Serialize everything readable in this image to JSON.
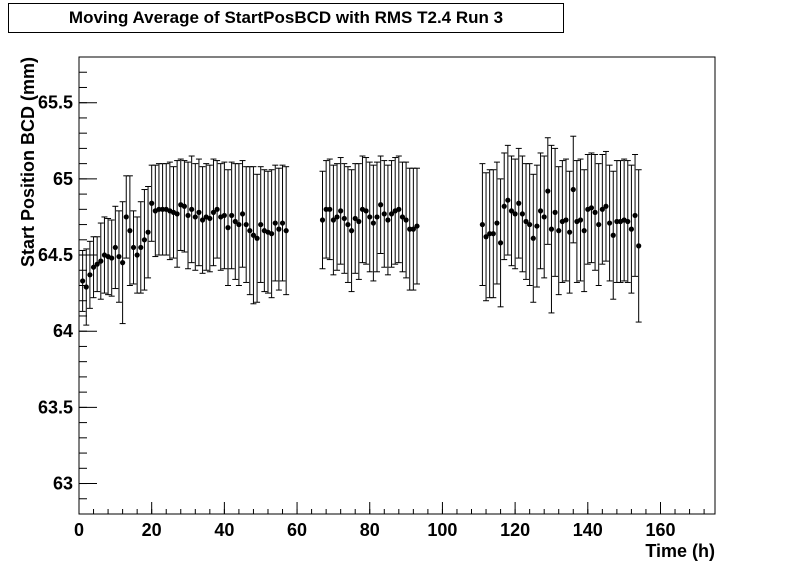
{
  "chart_data": {
    "type": "scatter",
    "title": "Moving Average of StartPosBCD with RMS T2.4 Run 3",
    "xlabel": "Time (h)",
    "ylabel": "Start Position BCD (mm)",
    "xlim": [
      0,
      175
    ],
    "ylim": [
      62.8,
      65.8
    ],
    "x_ticks": [
      0,
      20,
      40,
      60,
      80,
      100,
      120,
      140,
      160
    ],
    "y_ticks": [
      63,
      63.5,
      64,
      64.5,
      65,
      65.5
    ],
    "x_tick_labels": [
      "0",
      "20",
      "40",
      "60",
      "80",
      "100",
      "120",
      "140",
      "160"
    ],
    "y_tick_labels": [
      "63",
      "63.5",
      "64",
      "64.5",
      "65",
      "65.5"
    ],
    "grid": false,
    "legend": "none",
    "series": [
      {
        "name": "",
        "marker": "circle",
        "color": "#000000",
        "points": [
          {
            "x": 1,
            "y": 64.33,
            "err": 0.2
          },
          {
            "x": 2,
            "y": 64.29,
            "err": 0.25
          },
          {
            "x": 3,
            "y": 64.37,
            "err": 0.22
          },
          {
            "x": 4,
            "y": 64.42,
            "err": 0.2
          },
          {
            "x": 5,
            "y": 64.44,
            "err": 0.18
          },
          {
            "x": 6,
            "y": 64.46,
            "err": 0.25
          },
          {
            "x": 7,
            "y": 64.5,
            "err": 0.25
          },
          {
            "x": 8,
            "y": 64.49,
            "err": 0.25
          },
          {
            "x": 9,
            "y": 64.48,
            "err": 0.25
          },
          {
            "x": 10,
            "y": 64.55,
            "err": 0.27
          },
          {
            "x": 11,
            "y": 64.49,
            "err": 0.3
          },
          {
            "x": 12,
            "y": 64.45,
            "err": 0.4
          },
          {
            "x": 13,
            "y": 64.75,
            "err": 0.27
          },
          {
            "x": 14,
            "y": 64.66,
            "err": 0.36
          },
          {
            "x": 15,
            "y": 64.55,
            "err": 0.24
          },
          {
            "x": 16,
            "y": 64.5,
            "err": 0.25
          },
          {
            "x": 17,
            "y": 64.55,
            "err": 0.3
          },
          {
            "x": 18,
            "y": 64.6,
            "err": 0.33
          },
          {
            "x": 19,
            "y": 64.65,
            "err": 0.3
          },
          {
            "x": 20,
            "y": 64.84,
            "err": 0.25
          },
          {
            "x": 21,
            "y": 64.79,
            "err": 0.3
          },
          {
            "x": 22,
            "y": 64.8,
            "err": 0.3
          },
          {
            "x": 23,
            "y": 64.8,
            "err": 0.3
          },
          {
            "x": 24,
            "y": 64.8,
            "err": 0.3
          },
          {
            "x": 25,
            "y": 64.79,
            "err": 0.32
          },
          {
            "x": 26,
            "y": 64.78,
            "err": 0.3
          },
          {
            "x": 27,
            "y": 64.77,
            "err": 0.35
          },
          {
            "x": 28,
            "y": 64.83,
            "err": 0.3
          },
          {
            "x": 29,
            "y": 64.82,
            "err": 0.3
          },
          {
            "x": 30,
            "y": 64.76,
            "err": 0.35
          },
          {
            "x": 31,
            "y": 64.8,
            "err": 0.35
          },
          {
            "x": 32,
            "y": 64.75,
            "err": 0.35
          },
          {
            "x": 33,
            "y": 64.78,
            "err": 0.35
          },
          {
            "x": 34,
            "y": 64.73,
            "err": 0.35
          },
          {
            "x": 35,
            "y": 64.75,
            "err": 0.35
          },
          {
            "x": 36,
            "y": 64.74,
            "err": 0.35
          },
          {
            "x": 37,
            "y": 64.78,
            "err": 0.35
          },
          {
            "x": 38,
            "y": 64.8,
            "err": 0.32
          },
          {
            "x": 39,
            "y": 64.75,
            "err": 0.35
          },
          {
            "x": 40,
            "y": 64.76,
            "err": 0.35
          },
          {
            "x": 41,
            "y": 64.68,
            "err": 0.38
          },
          {
            "x": 42,
            "y": 64.76,
            "err": 0.35
          },
          {
            "x": 43,
            "y": 64.72,
            "err": 0.38
          },
          {
            "x": 44,
            "y": 64.7,
            "err": 0.4
          },
          {
            "x": 45,
            "y": 64.77,
            "err": 0.35
          },
          {
            "x": 46,
            "y": 64.7,
            "err": 0.38
          },
          {
            "x": 47,
            "y": 64.66,
            "err": 0.42
          },
          {
            "x": 48,
            "y": 64.63,
            "err": 0.45
          },
          {
            "x": 49,
            "y": 64.61,
            "err": 0.42
          },
          {
            "x": 50,
            "y": 64.7,
            "err": 0.38
          },
          {
            "x": 51,
            "y": 64.66,
            "err": 0.4
          },
          {
            "x": 52,
            "y": 64.65,
            "err": 0.4
          },
          {
            "x": 53,
            "y": 64.64,
            "err": 0.42
          },
          {
            "x": 54,
            "y": 64.71,
            "err": 0.38
          },
          {
            "x": 55,
            "y": 64.67,
            "err": 0.4
          },
          {
            "x": 56,
            "y": 64.71,
            "err": 0.38
          },
          {
            "x": 57,
            "y": 64.66,
            "err": 0.42
          },
          {
            "x": 67,
            "y": 64.73,
            "err": 0.32
          },
          {
            "x": 68,
            "y": 64.8,
            "err": 0.32
          },
          {
            "x": 69,
            "y": 64.8,
            "err": 0.33
          },
          {
            "x": 70,
            "y": 64.73,
            "err": 0.36
          },
          {
            "x": 71,
            "y": 64.75,
            "err": 0.35
          },
          {
            "x": 72,
            "y": 64.79,
            "err": 0.35
          },
          {
            "x": 73,
            "y": 64.74,
            "err": 0.36
          },
          {
            "x": 74,
            "y": 64.7,
            "err": 0.38
          },
          {
            "x": 75,
            "y": 64.66,
            "err": 0.4
          },
          {
            "x": 76,
            "y": 64.74,
            "err": 0.36
          },
          {
            "x": 77,
            "y": 64.72,
            "err": 0.38
          },
          {
            "x": 78,
            "y": 64.8,
            "err": 0.35
          },
          {
            "x": 79,
            "y": 64.79,
            "err": 0.35
          },
          {
            "x": 80,
            "y": 64.75,
            "err": 0.36
          },
          {
            "x": 81,
            "y": 64.71,
            "err": 0.38
          },
          {
            "x": 82,
            "y": 64.75,
            "err": 0.36
          },
          {
            "x": 83,
            "y": 64.83,
            "err": 0.32
          },
          {
            "x": 84,
            "y": 64.77,
            "err": 0.35
          },
          {
            "x": 85,
            "y": 64.73,
            "err": 0.36
          },
          {
            "x": 86,
            "y": 64.77,
            "err": 0.35
          },
          {
            "x": 87,
            "y": 64.79,
            "err": 0.35
          },
          {
            "x": 88,
            "y": 64.8,
            "err": 0.35
          },
          {
            "x": 89,
            "y": 64.75,
            "err": 0.36
          },
          {
            "x": 90,
            "y": 64.73,
            "err": 0.38
          },
          {
            "x": 91,
            "y": 64.67,
            "err": 0.4
          },
          {
            "x": 92,
            "y": 64.67,
            "err": 0.4
          },
          {
            "x": 93,
            "y": 64.69,
            "err": 0.38
          },
          {
            "x": 111,
            "y": 64.7,
            "err": 0.4
          },
          {
            "x": 112,
            "y": 64.62,
            "err": 0.42
          },
          {
            "x": 113,
            "y": 64.64,
            "err": 0.42
          },
          {
            "x": 114,
            "y": 64.64,
            "err": 0.42
          },
          {
            "x": 115,
            "y": 64.71,
            "err": 0.4
          },
          {
            "x": 116,
            "y": 64.58,
            "err": 0.42
          },
          {
            "x": 117,
            "y": 64.82,
            "err": 0.35
          },
          {
            "x": 118,
            "y": 64.86,
            "err": 0.36
          },
          {
            "x": 119,
            "y": 64.79,
            "err": 0.36
          },
          {
            "x": 120,
            "y": 64.77,
            "err": 0.36
          },
          {
            "x": 121,
            "y": 64.84,
            "err": 0.36
          },
          {
            "x": 122,
            "y": 64.77,
            "err": 0.38
          },
          {
            "x": 123,
            "y": 64.72,
            "err": 0.38
          },
          {
            "x": 124,
            "y": 64.7,
            "err": 0.4
          },
          {
            "x": 125,
            "y": 64.61,
            "err": 0.42
          },
          {
            "x": 126,
            "y": 64.69,
            "err": 0.4
          },
          {
            "x": 127,
            "y": 64.79,
            "err": 0.38
          },
          {
            "x": 128,
            "y": 64.75,
            "err": 0.4
          },
          {
            "x": 129,
            "y": 64.92,
            "err": 0.35
          },
          {
            "x": 130,
            "y": 64.67,
            "err": 0.55
          },
          {
            "x": 131,
            "y": 64.78,
            "err": 0.42
          },
          {
            "x": 132,
            "y": 64.66,
            "err": 0.42
          },
          {
            "x": 133,
            "y": 64.72,
            "err": 0.4
          },
          {
            "x": 134,
            "y": 64.73,
            "err": 0.4
          },
          {
            "x": 135,
            "y": 64.65,
            "err": 0.4
          },
          {
            "x": 136,
            "y": 64.93,
            "err": 0.35
          },
          {
            "x": 137,
            "y": 64.72,
            "err": 0.4
          },
          {
            "x": 138,
            "y": 64.73,
            "err": 0.4
          },
          {
            "x": 139,
            "y": 64.66,
            "err": 0.4
          },
          {
            "x": 140,
            "y": 64.8,
            "err": 0.36
          },
          {
            "x": 141,
            "y": 64.81,
            "err": 0.36
          },
          {
            "x": 142,
            "y": 64.78,
            "err": 0.38
          },
          {
            "x": 143,
            "y": 64.7,
            "err": 0.4
          },
          {
            "x": 144,
            "y": 64.8,
            "err": 0.36
          },
          {
            "x": 145,
            "y": 64.82,
            "err": 0.36
          },
          {
            "x": 146,
            "y": 64.71,
            "err": 0.38
          },
          {
            "x": 147,
            "y": 64.63,
            "err": 0.42
          },
          {
            "x": 148,
            "y": 64.72,
            "err": 0.4
          },
          {
            "x": 149,
            "y": 64.72,
            "err": 0.4
          },
          {
            "x": 150,
            "y": 64.73,
            "err": 0.4
          },
          {
            "x": 151,
            "y": 64.72,
            "err": 0.4
          },
          {
            "x": 152,
            "y": 64.67,
            "err": 0.42
          },
          {
            "x": 153,
            "y": 64.76,
            "err": 0.4
          },
          {
            "x": 154,
            "y": 64.56,
            "err": 0.5
          }
        ]
      }
    ]
  }
}
